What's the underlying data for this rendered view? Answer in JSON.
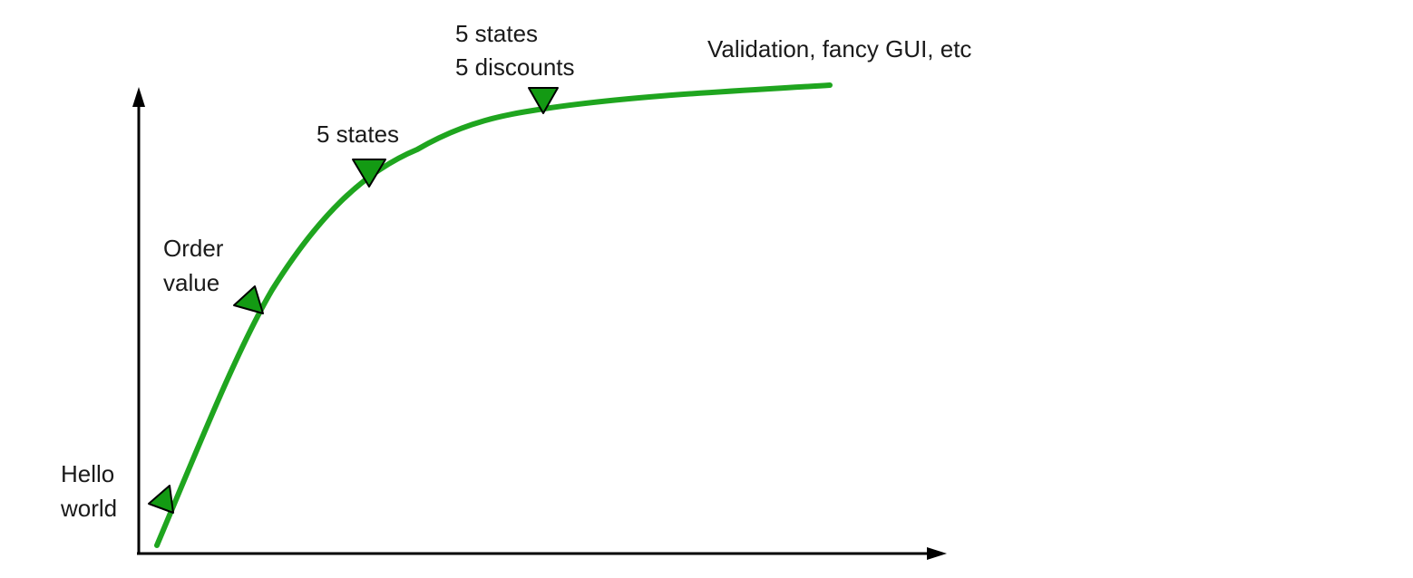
{
  "diagram": {
    "curve_color": "#1fa51f",
    "marker_color": "#139a13",
    "axis_color": "#000000",
    "milestones": [
      {
        "id": "hello-world",
        "lines": [
          "Hello",
          "world"
        ]
      },
      {
        "id": "order-value",
        "lines": [
          "Order",
          "value"
        ]
      },
      {
        "id": "5-states",
        "lines": [
          "5 states"
        ]
      },
      {
        "id": "5-states-5-discounts",
        "lines": [
          "5 states",
          "5 discounts"
        ]
      },
      {
        "id": "validation-fancy-gui",
        "lines": [
          "Validation, fancy GUI, etc"
        ]
      }
    ]
  }
}
